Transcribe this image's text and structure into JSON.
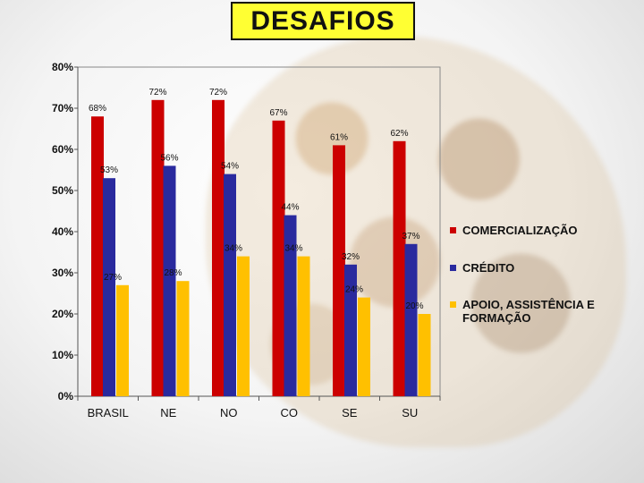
{
  "title": "DESAFIOS",
  "chart_data": {
    "type": "bar",
    "categories": [
      "BRASIL",
      "NE",
      "NO",
      "CO",
      "SE",
      "SU"
    ],
    "series": [
      {
        "name": "COMERCIALIZAÇÃO",
        "color": "#cc0000",
        "values": [
          68,
          72,
          72,
          67,
          61,
          62
        ]
      },
      {
        "name": "CRÉDITO",
        "color": "#2a2a9e",
        "values": [
          53,
          56,
          54,
          44,
          32,
          37
        ]
      },
      {
        "name": "APOIO, ASSISTÊNCIA E FORMAÇÃO",
        "color": "#ffc000",
        "values": [
          27,
          28,
          34,
          34,
          24,
          20
        ]
      }
    ],
    "ylim": [
      0,
      80
    ],
    "yticks": [
      "0%",
      "10%",
      "20%",
      "30%",
      "40%",
      "50%",
      "60%",
      "70%",
      "80%"
    ],
    "value_suffix": "%",
    "data_labels": [
      [
        "68%",
        "72%",
        "72%",
        "67%",
        "61%",
        "62%"
      ],
      [
        "53%",
        "56%",
        "54%",
        "44%",
        "32%",
        "37%"
      ],
      [
        "27%",
        "28%",
        "34%",
        "34%",
        "24%",
        "20%"
      ]
    ],
    "legend_position": "right"
  }
}
